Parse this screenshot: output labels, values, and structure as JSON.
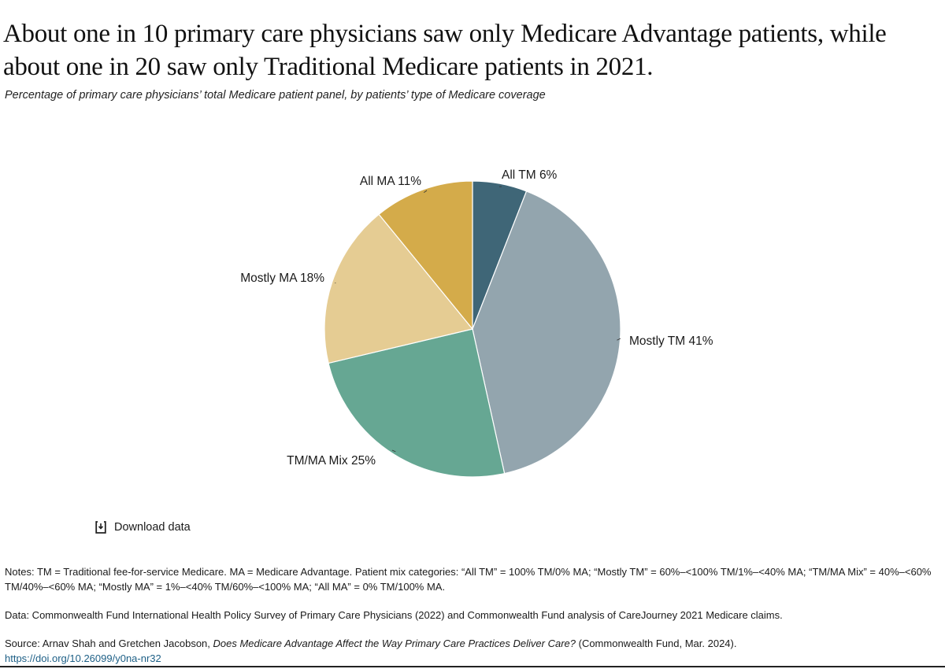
{
  "title": "About one in 10 primary care physicians saw only Medicare Advantage patients, while about one in 20 saw only Traditional Medicare patients in 2021.",
  "subtitle": "Percentage of primary care physicians’ total Medicare patient panel, by patients’ type of Medicare coverage",
  "chart_data": {
    "type": "pie",
    "start": "top, clockwise",
    "slices": [
      {
        "label": "All TM 6%",
        "name": "All TM",
        "value": 6,
        "color": "#3f6677"
      },
      {
        "label": "Mostly TM 41%",
        "name": "Mostly TM",
        "value": 41,
        "color": "#93a5ae"
      },
      {
        "label": "TM/MA Mix 25%",
        "name": "TM/MA Mix",
        "value": 25,
        "color": "#66a793"
      },
      {
        "label": "Mostly MA 18%",
        "name": "Mostly MA",
        "value": 18,
        "color": "#e5cc93"
      },
      {
        "label": "All MA 11%",
        "name": "All MA",
        "value": 11,
        "color": "#d4ab4a"
      }
    ]
  },
  "download": {
    "label": "Download data",
    "icon": "download-icon"
  },
  "notes": {
    "notes": "Notes: TM = Traditional fee-for-service Medicare. MA = Medicare Advantage. Patient mix categories: “All TM” = 100% TM/0% MA; “Mostly TM” = 60%–<100% TM/1%–<40% MA; “TM/MA Mix” = 40%–<60% TM/40%–<60% MA; “Mostly MA” = 1%–<40% TM/60%–<100% MA; “All MA” = 0% TM/100% MA.",
    "data": "Data: Commonwealth Fund International Health Policy Survey of Primary Care Physicians (2022) and Commonwealth Fund analysis of CareJourney 2021 Medicare claims.",
    "source_prefix": "Source: Arnav Shah and Gretchen Jacobson, ",
    "source_title": "Does Medicare Advantage Affect the Way Primary Care Practices Deliver Care?",
    "source_suffix": " (Commonwealth Fund, Mar. 2024).",
    "doi": "https://doi.org/10.26099/y0na-nr32"
  }
}
